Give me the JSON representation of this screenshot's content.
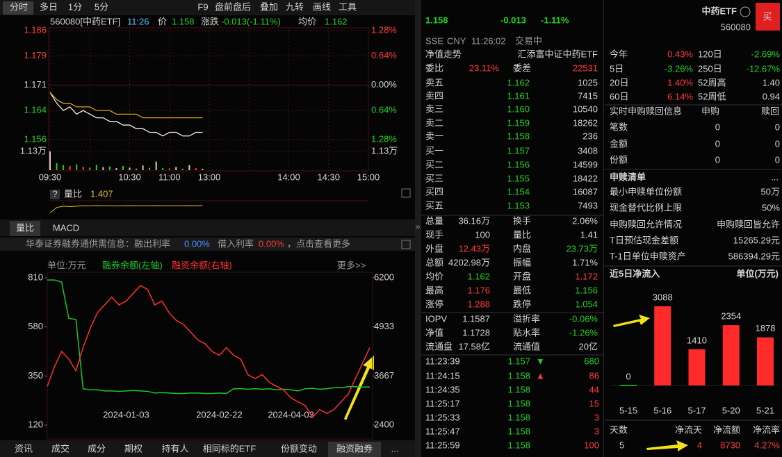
{
  "toolbar": {
    "tabs": [
      "分时",
      "多日",
      "1分",
      "5分"
    ],
    "tools": [
      "F9",
      "盘前盘后",
      "叠加",
      "九转",
      "画线",
      "工具"
    ]
  },
  "intraday": {
    "code": "560080[中药ETF]",
    "time": "11:26",
    "price_label": "价",
    "price": "1.158",
    "change_label": "涨跌",
    "change": "-0.013(-1.11%)",
    "avg_label": "均价",
    "avg": "1.162",
    "ylim": [
      1.156,
      1.186
    ],
    "yticks": [
      1.186,
      1.179,
      1.171,
      1.164,
      1.156
    ],
    "pct_labels": [
      "1.28%",
      "0.64%",
      "0.00%",
      "0.64%",
      "1.28%"
    ],
    "volume_lim": [
      0,
      11300
    ],
    "volume_ticks": [
      {
        "value": 11300,
        "label": "1.13万"
      }
    ],
    "time_labels": [
      "09:30",
      null,
      "10:30",
      "11:00",
      "13:00",
      null,
      "14:00",
      "14:30",
      "15:00"
    ],
    "series": [
      {
        "name": "价",
        "color": "#f0f0f0",
        "values": [
          1.169,
          1.166,
          1.164,
          1.165,
          1.163,
          1.164,
          1.163,
          1.162,
          1.162,
          1.161,
          1.161,
          1.16,
          1.16,
          1.159,
          1.159,
          1.158,
          1.158,
          1.157,
          1.158,
          1.158,
          1.157,
          1.157,
          1.158,
          1.158
        ]
      },
      {
        "name": "均价",
        "color": "#d9a21b",
        "values": [
          1.169,
          1.167,
          1.166,
          1.166,
          1.165,
          1.165,
          1.165,
          1.164,
          1.164,
          1.164,
          1.163,
          1.163,
          1.163,
          1.163,
          1.162,
          1.162,
          1.162,
          1.162,
          1.162,
          1.162,
          1.162,
          1.162,
          1.162,
          1.162
        ]
      }
    ],
    "volumes": [
      11300,
      4200,
      3000,
      2500,
      3500,
      2000,
      1500,
      3200,
      1800,
      2200,
      1200,
      2600,
      1500,
      1000,
      2800,
      1400,
      5200,
      1300,
      1100,
      1900,
      900,
      3000,
      1200,
      800
    ],
    "ratio_label": "量比",
    "ratio": "1.407",
    "ratio_values": [
      0.6,
      1.2,
      1.35,
      1.3,
      1.35,
      1.4,
      1.38,
      1.42,
      1.4,
      1.4,
      1.38,
      1.4,
      1.41,
      1.4,
      1.39,
      1.4,
      1.41,
      1.4,
      1.4,
      1.41,
      1.4,
      1.41,
      1.4,
      1.407
    ]
  },
  "indicator_tabs": [
    "量比",
    "MACD"
  ],
  "info_bar": {
    "text": "华泰证券融券通供需信息：融出利率",
    "lend_rate": "0.00%",
    "borrow_label": "借入利率",
    "borrow_rate": "0.00%",
    "more": "，点击查看更多"
  },
  "margin_chart": {
    "unit": "单位:万元",
    "more": "更多>>",
    "ylim": [
      120,
      810
    ],
    "yticks": [
      810,
      580,
      350,
      120
    ],
    "y2lim": [
      2400,
      6200
    ],
    "y2ticks": [
      6200,
      4933,
      3667,
      2400
    ],
    "categories": [
      null,
      null,
      null,
      null,
      null,
      null,
      null,
      null,
      null,
      null,
      null,
      "2024-01-03",
      null,
      null,
      null,
      null,
      null,
      null,
      null,
      null,
      null,
      null,
      null,
      null,
      "2024-02-22",
      null,
      null,
      null,
      null,
      null,
      null,
      null,
      null,
      null,
      "2024-04-03",
      null,
      null,
      null,
      null,
      null,
      null,
      null,
      null,
      null,
      null,
      null
    ],
    "series": [
      {
        "name": "融券余额(左轴)",
        "color": "#22c42a",
        "values": [
          800,
          800,
          790,
          620,
          615,
          290,
          285,
          285,
          280,
          280,
          278,
          280,
          282,
          280,
          278,
          270,
          272,
          270,
          268,
          268,
          270,
          270,
          268,
          268,
          270,
          268,
          290,
          290,
          288,
          290,
          288,
          290,
          285,
          288,
          285,
          280,
          290,
          292,
          288,
          290,
          295,
          295,
          300,
          300,
          298,
          298
        ]
      },
      {
        "name": "融资余额(右轴)",
        "color": "#ff3030",
        "axis": "y2",
        "values": [
          3400,
          3900,
          4300,
          4100,
          3800,
          4400,
          4900,
          5300,
          5500,
          5700,
          5500,
          5600,
          5800,
          6000,
          5900,
          5500,
          5600,
          5300,
          5100,
          5000,
          4800,
          4600,
          4500,
          4300,
          4200,
          4400,
          4200,
          4100,
          3700,
          3600,
          3700,
          3500,
          3400,
          3300,
          3100,
          3000,
          2900,
          2600,
          2800,
          2700,
          2800,
          3000,
          3200,
          3600,
          4000,
          4400
        ]
      }
    ]
  },
  "bottom_tabs": [
    "资讯",
    "成交",
    "成分",
    "期权",
    "持有人",
    "相同标的ETF",
    "份额变动",
    "融资融券",
    "..."
  ],
  "quote": {
    "price": "1.158",
    "change": "-0.013",
    "change_pct": "-1.11%",
    "exchange": "SSE",
    "currency": "CNY",
    "time": "11:26:02",
    "status": "交易中",
    "nav_trend": "净值走势",
    "fund_name": "汇添富中证中药ETF",
    "bid_ratio_label": "委比",
    "bid_ratio": "23.11%",
    "bid_diff_label": "委差",
    "bid_diff": "22531",
    "asks": [
      [
        "卖五",
        "1.162",
        "1025"
      ],
      [
        "卖四",
        "1.161",
        "7415"
      ],
      [
        "卖三",
        "1.160",
        "10540"
      ],
      [
        "卖二",
        "1.159",
        "18262"
      ],
      [
        "卖一",
        "1.158",
        "236"
      ]
    ],
    "bids": [
      [
        "买一",
        "1.157",
        "3408"
      ],
      [
        "买二",
        "1.156",
        "14599"
      ],
      [
        "买三",
        "1.155",
        "18422"
      ],
      [
        "买四",
        "1.154",
        "16087"
      ],
      [
        "买五",
        "1.153",
        "7493"
      ]
    ],
    "stats": [
      [
        "总量",
        "36.16万",
        "换手",
        "2.06%"
      ],
      [
        "现手",
        "100",
        "量比",
        "1.41"
      ],
      [
        "外盘",
        "12.43万",
        "内盘",
        "23.73万"
      ],
      [
        "总额",
        "4202.98万",
        "振幅",
        "1.71%"
      ],
      [
        "均价",
        "1.162",
        "开盘",
        "1.172"
      ],
      [
        "最高",
        "1.176",
        "最低",
        "1.156"
      ],
      [
        "涨停",
        "1.288",
        "跌停",
        "1.054"
      ]
    ],
    "nav": [
      [
        "IOPV",
        "1.1587",
        "溢折率",
        "-0.06%"
      ],
      [
        "净值",
        "1.1728",
        "贴水率",
        "-1.26%"
      ],
      [
        "流通盘",
        "17.58亿",
        "流通值",
        "20亿"
      ]
    ],
    "trades": [
      [
        "11:23:39",
        "1.157",
        "680"
      ],
      [
        "11:24:15",
        "1.158",
        "86"
      ],
      [
        "11:24:35",
        "1.158",
        "44"
      ],
      [
        "11:25:17",
        "1.158",
        "15"
      ],
      [
        "11:25:33",
        "1.158",
        "3"
      ],
      [
        "11:25:47",
        "1.158",
        "3"
      ],
      [
        "11:25:59",
        "1.158",
        "100"
      ]
    ]
  },
  "side": {
    "name": "中药ETF",
    "code": "560080",
    "buy": "买",
    "returns": [
      [
        "今年",
        "0.43%",
        "120日",
        "-2.69%"
      ],
      [
        "5日",
        "-3.26%",
        "250日",
        "-12.67%"
      ],
      [
        "20日",
        "1.40%",
        "52周高",
        "1.40"
      ],
      [
        "60日",
        "6.14%",
        "52周低",
        "0.94"
      ]
    ],
    "realtime": {
      "title": "实时申购赎回信息",
      "cols": [
        "申购",
        "赎回"
      ],
      "rows": [
        [
          "笔数",
          "0",
          "0"
        ],
        [
          "金额",
          "0",
          "0"
        ],
        [
          "份额",
          "0",
          "0"
        ]
      ]
    },
    "list_title": "申赎清单",
    "list_more": "...",
    "list": [
      [
        "最小申赎单位份额",
        "50万"
      ],
      [
        "现金替代比例上限",
        "50%"
      ],
      [
        "申购赎回允许情况",
        "申购赎回皆允许"
      ],
      [
        "T日预估现金差额",
        "15265.29元"
      ],
      [
        "T-1日单位申赎资产",
        "586394.29元"
      ]
    ],
    "inflow_title": "近5日净流入",
    "inflow_unit": "单位(万元)",
    "inflow": {
      "type": "bar",
      "categories": [
        "5-15",
        "5-16",
        "5-17",
        "5-20",
        "5-21"
      ],
      "values": [
        0,
        3088,
        1410,
        2354,
        1878
      ],
      "color": "#ff2a2a"
    },
    "summary": {
      "headers": [
        "天数",
        "净流天",
        "净流额",
        "净流率"
      ],
      "values": [
        "5",
        "4",
        "8730",
        "4.27%"
      ]
    }
  }
}
